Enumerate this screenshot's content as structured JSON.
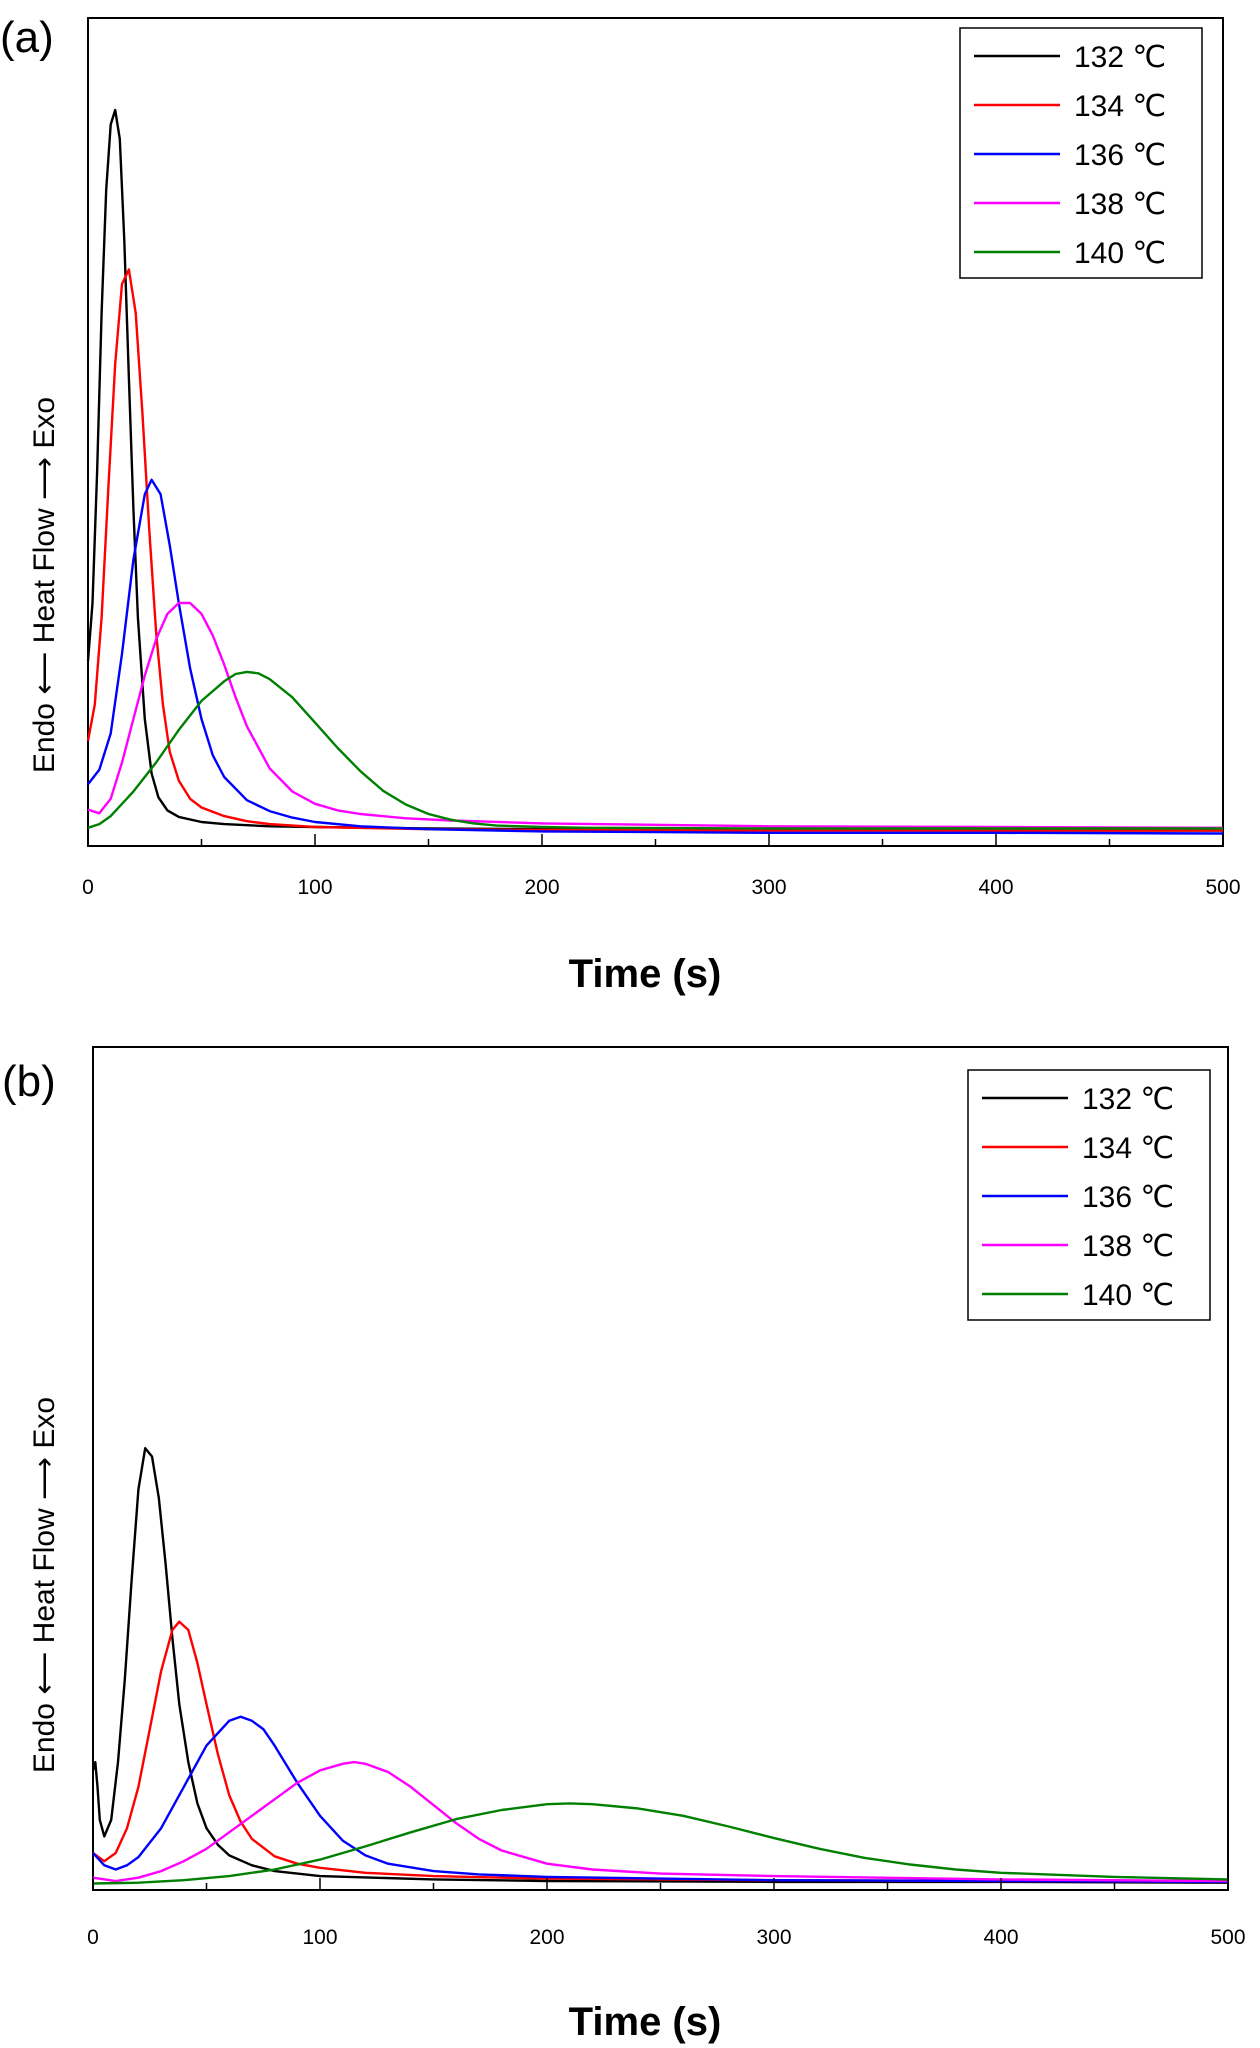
{
  "chart_data": [
    {
      "type": "line",
      "panel_label": "(a)",
      "xlabel": "Time (s)",
      "ylabel": "Endo ⟵ Heat Flow ⟶ Exo",
      "xlim": [
        0,
        500
      ],
      "ylim": [
        0,
        1
      ],
      "xticks": [
        "0",
        "100",
        "200",
        "300",
        "400",
        "500"
      ],
      "grid": false,
      "legend_position": "top-right",
      "series": [
        {
          "name": "132 ℃",
          "color": "#000000",
          "x": [
            0,
            2,
            4,
            6,
            8,
            10,
            12,
            14,
            16,
            18,
            20,
            22,
            25,
            28,
            31,
            35,
            40,
            50,
            60,
            80,
            100,
            150,
            200,
            300,
            400,
            500
          ],
          "y": [
            0.24,
            0.32,
            0.5,
            0.72,
            0.89,
            0.98,
            1.0,
            0.96,
            0.82,
            0.63,
            0.45,
            0.3,
            0.16,
            0.085,
            0.052,
            0.034,
            0.025,
            0.018,
            0.015,
            0.012,
            0.011,
            0.009,
            0.008,
            0.007,
            0.006,
            0.006
          ]
        },
        {
          "name": "134 ℃",
          "color": "#ff0000",
          "x": [
            0,
            3,
            6,
            9,
            12,
            15,
            18,
            21,
            24,
            27,
            30,
            33,
            36,
            40,
            45,
            50,
            60,
            70,
            80,
            100,
            150,
            200,
            300,
            400,
            500
          ],
          "y": [
            0.13,
            0.18,
            0.3,
            0.48,
            0.65,
            0.76,
            0.78,
            0.72,
            0.58,
            0.42,
            0.28,
            0.18,
            0.115,
            0.075,
            0.05,
            0.038,
            0.026,
            0.019,
            0.015,
            0.011,
            0.008,
            0.007,
            0.006,
            0.006,
            0.006
          ]
        },
        {
          "name": "136 ℃",
          "color": "#0000ff",
          "x": [
            0,
            5,
            10,
            15,
            20,
            25,
            28,
            32,
            36,
            40,
            45,
            50,
            55,
            60,
            70,
            80,
            90,
            100,
            120,
            150,
            200,
            250,
            300,
            400,
            500
          ],
          "y": [
            0.07,
            0.09,
            0.14,
            0.25,
            0.38,
            0.47,
            0.49,
            0.47,
            0.4,
            0.32,
            0.23,
            0.16,
            0.11,
            0.08,
            0.048,
            0.033,
            0.024,
            0.018,
            0.012,
            0.008,
            0.005,
            0.004,
            0.003,
            0.003,
            0.002
          ]
        },
        {
          "name": "138 ℃",
          "color": "#ff00ff",
          "x": [
            0,
            5,
            10,
            15,
            20,
            25,
            30,
            35,
            40,
            45,
            50,
            55,
            60,
            65,
            70,
            80,
            90,
            100,
            110,
            120,
            140,
            160,
            200,
            300,
            400,
            500
          ],
          "y": [
            0.035,
            0.03,
            0.05,
            0.1,
            0.16,
            0.22,
            0.27,
            0.305,
            0.32,
            0.32,
            0.305,
            0.275,
            0.235,
            0.19,
            0.15,
            0.092,
            0.06,
            0.043,
            0.034,
            0.029,
            0.023,
            0.02,
            0.016,
            0.012,
            0.011,
            0.01
          ]
        },
        {
          "name": "140 ℃",
          "color": "#008000",
          "x": [
            0,
            5,
            10,
            20,
            30,
            40,
            50,
            60,
            65,
            70,
            75,
            80,
            90,
            100,
            110,
            120,
            130,
            140,
            150,
            160,
            170,
            180,
            200,
            220,
            300,
            400,
            500
          ],
          "y": [
            0.01,
            0.015,
            0.026,
            0.06,
            0.1,
            0.145,
            0.185,
            0.212,
            0.222,
            0.225,
            0.223,
            0.215,
            0.19,
            0.155,
            0.12,
            0.088,
            0.061,
            0.042,
            0.029,
            0.021,
            0.016,
            0.013,
            0.011,
            0.01,
            0.009,
            0.009,
            0.009
          ]
        }
      ]
    },
    {
      "type": "line",
      "panel_label": "(b)",
      "xlabel": "Time (s)",
      "ylabel": "Endo ⟵ Heat Flow ⟶ Exo",
      "xlim": [
        0,
        500
      ],
      "ylim": [
        0,
        1
      ],
      "xticks": [
        "0",
        "100",
        "200",
        "300",
        "400",
        "500"
      ],
      "grid": false,
      "legend_position": "top-right",
      "series": [
        {
          "name": "132 ℃",
          "color": "#000000",
          "x": [
            0,
            1,
            2,
            3,
            5,
            8,
            11,
            14,
            17,
            20,
            23,
            26,
            29,
            32,
            35,
            38,
            42,
            46,
            50,
            55,
            60,
            70,
            80,
            100,
            150,
            200,
            300,
            400,
            500
          ],
          "y": [
            0.14,
            0.15,
            0.12,
            0.08,
            0.06,
            0.08,
            0.15,
            0.25,
            0.37,
            0.48,
            0.53,
            0.52,
            0.47,
            0.39,
            0.3,
            0.22,
            0.15,
            0.1,
            0.07,
            0.05,
            0.037,
            0.025,
            0.018,
            0.012,
            0.008,
            0.006,
            0.005,
            0.005,
            0.004
          ]
        },
        {
          "name": "134 ℃",
          "color": "#ff0000",
          "x": [
            0,
            5,
            10,
            15,
            20,
            25,
            30,
            35,
            38,
            42,
            46,
            50,
            55,
            60,
            65,
            70,
            80,
            90,
            100,
            120,
            150,
            200,
            300,
            400,
            500
          ],
          "y": [
            0.04,
            0.03,
            0.04,
            0.07,
            0.12,
            0.19,
            0.26,
            0.31,
            0.32,
            0.31,
            0.27,
            0.22,
            0.16,
            0.11,
            0.078,
            0.057,
            0.036,
            0.027,
            0.022,
            0.016,
            0.012,
            0.009,
            0.007,
            0.006,
            0.005
          ]
        },
        {
          "name": "136 ℃",
          "color": "#0000ff",
          "x": [
            0,
            5,
            10,
            15,
            20,
            30,
            40,
            50,
            60,
            65,
            70,
            75,
            80,
            90,
            100,
            110,
            120,
            130,
            150,
            170,
            200,
            250,
            300,
            400,
            500
          ],
          "y": [
            0.04,
            0.025,
            0.02,
            0.025,
            0.035,
            0.07,
            0.12,
            0.17,
            0.2,
            0.205,
            0.2,
            0.19,
            0.17,
            0.125,
            0.085,
            0.055,
            0.037,
            0.027,
            0.018,
            0.014,
            0.011,
            0.009,
            0.007,
            0.006,
            0.005
          ]
        },
        {
          "name": "138 ℃",
          "color": "#ff00ff",
          "x": [
            0,
            10,
            20,
            30,
            40,
            50,
            60,
            70,
            80,
            90,
            100,
            110,
            115,
            120,
            130,
            140,
            150,
            160,
            170,
            180,
            200,
            220,
            250,
            300,
            400,
            500
          ],
          "y": [
            0.01,
            0.006,
            0.01,
            0.018,
            0.03,
            0.045,
            0.065,
            0.085,
            0.105,
            0.125,
            0.14,
            0.148,
            0.15,
            0.148,
            0.138,
            0.12,
            0.098,
            0.076,
            0.057,
            0.043,
            0.027,
            0.02,
            0.015,
            0.012,
            0.008,
            0.006
          ]
        },
        {
          "name": "140 ℃",
          "color": "#008000",
          "x": [
            0,
            20,
            40,
            60,
            80,
            100,
            120,
            140,
            160,
            180,
            200,
            210,
            220,
            240,
            260,
            280,
            300,
            320,
            340,
            360,
            380,
            400,
            450,
            500
          ],
          "y": [
            0.003,
            0.004,
            0.007,
            0.012,
            0.02,
            0.032,
            0.048,
            0.065,
            0.081,
            0.092,
            0.099,
            0.1,
            0.099,
            0.094,
            0.085,
            0.072,
            0.058,
            0.045,
            0.034,
            0.026,
            0.02,
            0.016,
            0.011,
            0.008
          ]
        }
      ]
    }
  ]
}
